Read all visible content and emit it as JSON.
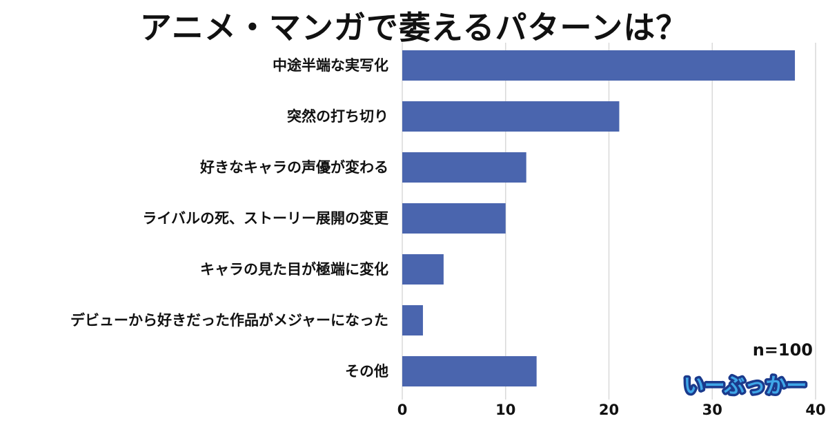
{
  "chart_data": {
    "type": "bar",
    "orientation": "horizontal",
    "title": "アニメ・マンガで萎えるパターンは？",
    "categories": [
      "中途半端な実写化",
      "突然の打ち切り",
      "好きなキャラの声優が変わる",
      "ライバルの死、ストーリー展開の変更",
      "キャラの見た目が極端に変化",
      "デビューから好きだった作品がメジャーになった",
      "その他"
    ],
    "values": [
      38,
      21,
      12,
      10,
      4,
      2,
      13
    ],
    "xlim": [
      0,
      40
    ],
    "xticks": [
      "0",
      "10",
      "20",
      "30",
      "40"
    ],
    "grid": "vertical",
    "bar_color": "#4a65ae",
    "grid_color": "#d9d9d9"
  },
  "annotation": {
    "sample_size": "n=100"
  },
  "brand": {
    "logo_text": "いーぶっかー",
    "fill_color": "#3fa7e8",
    "outline_color": "#1b3a8c"
  }
}
